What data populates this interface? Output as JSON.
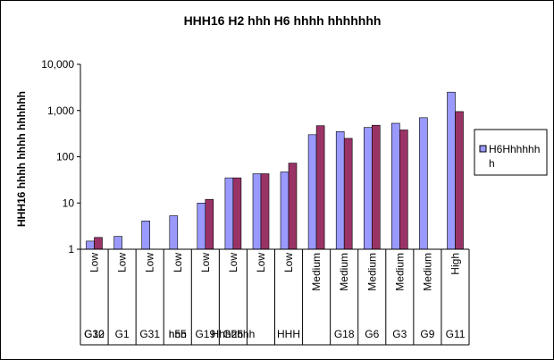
{
  "chart_data": {
    "type": "bar",
    "title": "HHH16 H2 hhh H6 hhhh hhhhhhh",
    "ylabel": "HHH16 hhhh hhhh hhhhhh",
    "yscale": "log",
    "ylim": [
      1,
      10000
    ],
    "yticks": [
      "1",
      "10",
      "100",
      "1,000",
      "10,000"
    ],
    "categories": [
      "Low",
      "Low",
      "Low",
      "Low",
      "Low",
      "Low",
      "Low",
      "Low",
      "Medium",
      "Medium",
      "Medium",
      "Medium",
      "Medium",
      "High"
    ],
    "groups": [
      "G30",
      "G1",
      "G31",
      "n55",
      "G19",
      "Hhhhhhh",
      "",
      "HHH",
      "",
      "G18",
      "G6",
      "G3",
      "G9",
      "G11"
    ],
    "groups_overlap": [
      "G12",
      "",
      "",
      "hhh",
      "",
      "G26",
      "",
      "",
      "",
      "",
      "",
      "",
      "",
      ""
    ],
    "legend_position": "right",
    "grid": false,
    "series": [
      {
        "name": "H6Hhhhhh h",
        "color": "#9999ff",
        "values": [
          1.5,
          1.9,
          4.1,
          5.3,
          10,
          35,
          43,
          47,
          300,
          350,
          430,
          530,
          700,
          2500
        ]
      },
      {
        "color": "#993366",
        "values": [
          1.8,
          null,
          null,
          null,
          12,
          35,
          43,
          73,
          470,
          250,
          480,
          380,
          null,
          950
        ]
      }
    ]
  }
}
